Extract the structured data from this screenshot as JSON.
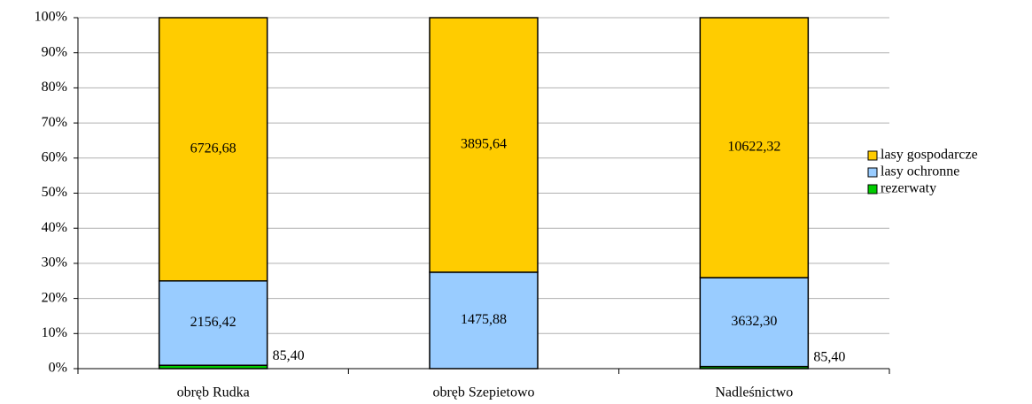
{
  "chart_data": {
    "type": "bar",
    "stacking": "percent",
    "categories": [
      "obręb Rudka",
      "obręb Szepietowo",
      "Nadleśnictwo"
    ],
    "series": [
      {
        "name": "rezerwaty",
        "color": "#00cc00",
        "values": [
          85.4,
          null,
          85.4
        ],
        "value_labels": [
          "85,40",
          null,
          "85,40"
        ]
      },
      {
        "name": "lasy ochronne",
        "color": "#99ccff",
        "values": [
          2156.42,
          1475.88,
          3632.3
        ],
        "value_labels": [
          "2156,42",
          "1475,88",
          "3632,30"
        ]
      },
      {
        "name": "lasy gospodarcze",
        "color": "#ffcc00",
        "values": [
          6726.68,
          3895.64,
          10622.32
        ],
        "value_labels": [
          "6726,68",
          "3895,64",
          "10622,32"
        ]
      }
    ],
    "ylim": [
      0,
      100
    ],
    "yticks": [
      {
        "value": 0,
        "label": "0%"
      },
      {
        "value": 10,
        "label": "10%"
      },
      {
        "value": 20,
        "label": "20%"
      },
      {
        "value": 30,
        "label": "30%"
      },
      {
        "value": 40,
        "label": "40%"
      },
      {
        "value": 50,
        "label": "50%"
      },
      {
        "value": 60,
        "label": "60%"
      },
      {
        "value": 70,
        "label": "70%"
      },
      {
        "value": 80,
        "label": "80%"
      },
      {
        "value": 90,
        "label": "90%"
      },
      {
        "value": 100,
        "label": "100%"
      }
    ],
    "grid": true,
    "legend": "right"
  }
}
